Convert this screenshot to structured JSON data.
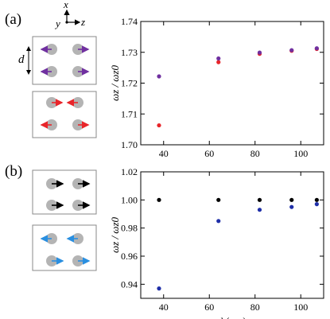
{
  "panels": [
    {
      "label": "(a)"
    },
    {
      "label": "(b)"
    }
  ],
  "axes_glyph": {
    "x": "x",
    "y": "y",
    "z": "z"
  },
  "schematic": {
    "d_label": "d"
  },
  "colors": {
    "purple": "#7030a0",
    "red": "#e8252a",
    "black": "#000000",
    "blue": "#1f2fa8",
    "arrow_blue": "#2a8fe0",
    "dot_gray": "#b4b4b4"
  },
  "chart_data": [
    {
      "type": "scatter",
      "xlabel": "d (μm)",
      "ylabel": "ωz / ωz0",
      "xlim": [
        30,
        110
      ],
      "ylim": [
        1.7,
        1.74
      ],
      "x_ticks": [
        "40",
        "60",
        "80",
        "100"
      ],
      "y_ticks": [
        "1.70",
        "1.71",
        "1.72",
        "1.73",
        "1.74"
      ],
      "grid": false,
      "series": [
        {
          "color": "#e8252a",
          "x": [
            38,
            64,
            82,
            96,
            107
          ],
          "y": [
            1.7063,
            1.7268,
            1.7295,
            1.7305,
            1.7311
          ]
        },
        {
          "color": "#7030a0",
          "x": [
            38,
            64,
            82,
            96,
            107
          ],
          "y": [
            1.7222,
            1.728,
            1.7299,
            1.7307,
            1.7313
          ]
        }
      ]
    },
    {
      "type": "scatter",
      "xlabel": "d (μm)",
      "ylabel": "ωz / ωz0",
      "xlim": [
        30,
        110
      ],
      "ylim": [
        0.93,
        1.02
      ],
      "x_ticks": [
        "40",
        "60",
        "80",
        "100"
      ],
      "y_ticks": [
        "0.94",
        "0.96",
        "0.98",
        "1.00",
        "1.02"
      ],
      "grid": false,
      "series": [
        {
          "color": "#000000",
          "x": [
            38,
            64,
            82,
            96,
            107
          ],
          "y": [
            1.0,
            1.0,
            1.0,
            1.0,
            1.0
          ]
        },
        {
          "color": "#1f2fa8",
          "x": [
            38,
            64,
            82,
            96,
            107
          ],
          "y": [
            0.937,
            0.985,
            0.993,
            0.995,
            0.997
          ]
        }
      ]
    }
  ]
}
